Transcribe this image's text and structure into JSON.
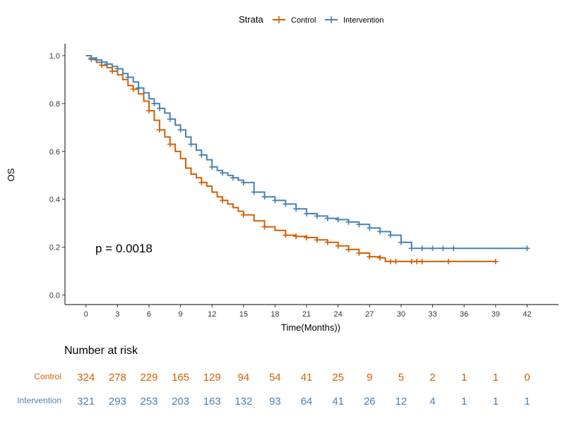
{
  "chart_data": {
    "type": "line",
    "subtype": "kaplan-meier",
    "xlabel": "Time(Months))",
    "ylabel": "OS",
    "xlim": [
      -2,
      45
    ],
    "ylim": [
      -0.04,
      1.05
    ],
    "xticks": [
      0,
      3,
      6,
      9,
      12,
      15,
      18,
      21,
      24,
      27,
      30,
      33,
      36,
      39,
      42
    ],
    "yticks": [
      0.0,
      0.2,
      0.4,
      0.6,
      0.8,
      1.0
    ],
    "ytick_labels": [
      "0.0",
      "0.2",
      "0.4",
      "0.6",
      "0.8",
      "1.0"
    ],
    "legend": {
      "title": "Strata",
      "placement": "top"
    },
    "annotation": "p = 0.0018",
    "series": [
      {
        "name": "Control",
        "color": "#D55E00",
        "x": [
          0,
          0.5,
          1,
          1.5,
          2,
          2.5,
          3,
          3.5,
          4,
          4.5,
          5,
          5.5,
          6,
          6.5,
          7,
          7.5,
          8,
          8.5,
          9,
          9.5,
          10,
          10.5,
          11,
          11.5,
          12,
          12.5,
          13,
          13.5,
          14,
          14.5,
          15,
          16,
          17,
          18,
          19,
          20,
          21,
          22,
          23,
          24,
          25,
          26,
          27,
          28,
          28.5,
          29,
          30,
          31,
          32,
          33,
          34,
          35,
          36,
          37,
          38,
          39
        ],
        "y": [
          1.0,
          0.985,
          0.972,
          0.96,
          0.95,
          0.935,
          0.92,
          0.9,
          0.875,
          0.86,
          0.84,
          0.81,
          0.77,
          0.73,
          0.69,
          0.66,
          0.63,
          0.6,
          0.57,
          0.53,
          0.505,
          0.49,
          0.47,
          0.455,
          0.43,
          0.41,
          0.395,
          0.38,
          0.365,
          0.35,
          0.335,
          0.31,
          0.285,
          0.27,
          0.25,
          0.245,
          0.24,
          0.23,
          0.22,
          0.205,
          0.19,
          0.175,
          0.16,
          0.155,
          0.14,
          0.14,
          0.14,
          0.14,
          0.14,
          0.14,
          0.14,
          0.14,
          0.14,
          0.14,
          0.14,
          0.14
        ],
        "censor_x": [
          0.5,
          1.5,
          2.5,
          4.5,
          6,
          7,
          8,
          11,
          13,
          15,
          17,
          19,
          20,
          21,
          22,
          23,
          24,
          25,
          26,
          27,
          28,
          29,
          29.5,
          31,
          31.5,
          32,
          34.5,
          39
        ]
      },
      {
        "name": "Intervention",
        "color": "#4682B4",
        "x": [
          0,
          0.5,
          1,
          1.5,
          2,
          2.5,
          3,
          3.5,
          4,
          4.5,
          5,
          5.5,
          6,
          6.5,
          7,
          7.5,
          8,
          8.5,
          9,
          9.5,
          10,
          10.5,
          11,
          11.5,
          12,
          12.5,
          13,
          13.5,
          14,
          14.5,
          15,
          16,
          17,
          18,
          19,
          20,
          21,
          22,
          23,
          24,
          25,
          26,
          27,
          28,
          29,
          30,
          31,
          32,
          33,
          34,
          35,
          36,
          37,
          38,
          39,
          40,
          41,
          42
        ],
        "y": [
          1.0,
          0.99,
          0.982,
          0.973,
          0.965,
          0.955,
          0.945,
          0.925,
          0.91,
          0.89,
          0.865,
          0.845,
          0.82,
          0.8,
          0.78,
          0.76,
          0.735,
          0.71,
          0.69,
          0.66,
          0.63,
          0.605,
          0.585,
          0.565,
          0.535,
          0.52,
          0.51,
          0.5,
          0.49,
          0.48,
          0.47,
          0.43,
          0.41,
          0.395,
          0.38,
          0.36,
          0.34,
          0.33,
          0.32,
          0.315,
          0.305,
          0.295,
          0.28,
          0.265,
          0.25,
          0.22,
          0.195,
          0.195,
          0.195,
          0.195,
          0.195,
          0.195,
          0.195,
          0.195,
          0.195,
          0.195,
          0.195,
          0.195
        ],
        "censor_x": [
          0.5,
          1,
          1.5,
          2,
          3,
          4,
          5,
          6.5,
          7,
          8,
          9,
          10,
          11,
          12,
          13,
          14,
          15,
          16,
          17,
          18,
          19,
          20,
          21,
          22,
          23,
          24,
          25,
          26,
          27,
          28,
          29,
          30,
          31,
          32,
          33,
          34,
          35,
          42
        ]
      }
    ],
    "risk_table": {
      "title": "Number at risk",
      "times": [
        0,
        3,
        6,
        9,
        12,
        15,
        18,
        21,
        24,
        27,
        30,
        33,
        36,
        39,
        42
      ],
      "rows": [
        {
          "label": "Control",
          "color": "#D55E00",
          "values": [
            "324",
            "278",
            "229",
            "165",
            "129",
            "94",
            "54",
            "41",
            "25",
            "9",
            "5",
            "2",
            "1",
            "1",
            "0"
          ]
        },
        {
          "label": "Intervention",
          "color": "#4682B4",
          "values": [
            "321",
            "293",
            "253",
            "203",
            "163",
            "132",
            "93",
            "64",
            "41",
            "26",
            "12",
            "4",
            "1",
            "1",
            "1"
          ]
        }
      ]
    }
  }
}
